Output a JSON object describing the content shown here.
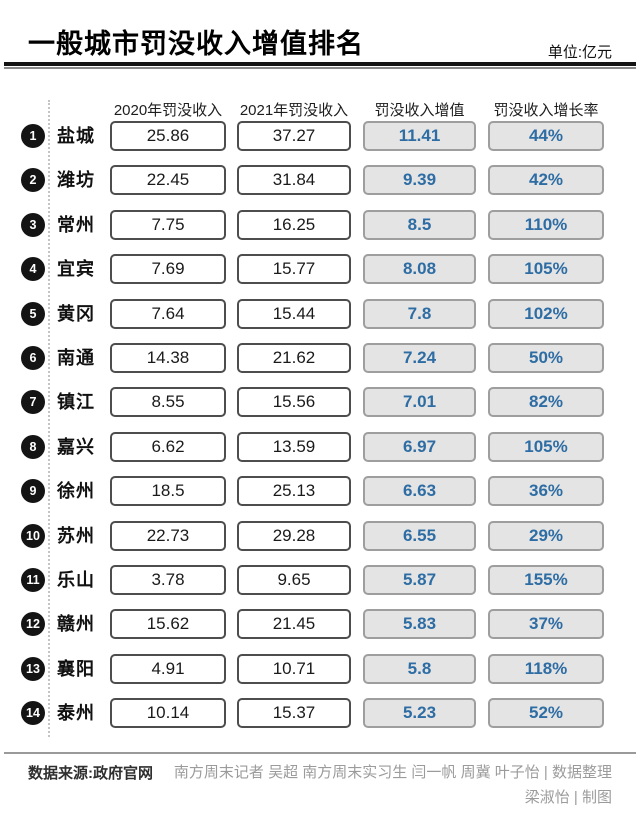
{
  "header": {
    "title": "一般城市罚没收入增值排名",
    "unit_label": "单位:亿元"
  },
  "chart_data": {
    "type": "table",
    "title": "一般城市罚没收入增值排名",
    "unit": "亿元",
    "columns": [
      "2020年罚没收入",
      "2021年罚没收入",
      "罚没收入增值",
      "罚没收入增长率"
    ],
    "rows": [
      {
        "rank": "1",
        "city": "盐城",
        "y2020": "25.86",
        "y2021": "37.27",
        "increase": "11.41",
        "growth": "44%"
      },
      {
        "rank": "2",
        "city": "潍坊",
        "y2020": "22.45",
        "y2021": "31.84",
        "increase": "9.39",
        "growth": "42%"
      },
      {
        "rank": "3",
        "city": "常州",
        "y2020": "7.75",
        "y2021": "16.25",
        "increase": "8.5",
        "growth": "110%"
      },
      {
        "rank": "4",
        "city": "宜宾",
        "y2020": "7.69",
        "y2021": "15.77",
        "increase": "8.08",
        "growth": "105%"
      },
      {
        "rank": "5",
        "city": "黄冈",
        "y2020": "7.64",
        "y2021": "15.44",
        "increase": "7.8",
        "growth": "102%"
      },
      {
        "rank": "6",
        "city": "南通",
        "y2020": "14.38",
        "y2021": "21.62",
        "increase": "7.24",
        "growth": "50%"
      },
      {
        "rank": "7",
        "city": "镇江",
        "y2020": "8.55",
        "y2021": "15.56",
        "increase": "7.01",
        "growth": "82%"
      },
      {
        "rank": "8",
        "city": "嘉兴",
        "y2020": "6.62",
        "y2021": "13.59",
        "increase": "6.97",
        "growth": "105%"
      },
      {
        "rank": "9",
        "city": "徐州",
        "y2020": "18.5",
        "y2021": "25.13",
        "increase": "6.63",
        "growth": "36%"
      },
      {
        "rank": "10",
        "city": "苏州",
        "y2020": "22.73",
        "y2021": "29.28",
        "increase": "6.55",
        "growth": "29%"
      },
      {
        "rank": "11",
        "city": "乐山",
        "y2020": "3.78",
        "y2021": "9.65",
        "increase": "5.87",
        "growth": "155%"
      },
      {
        "rank": "12",
        "city": "赣州",
        "y2020": "15.62",
        "y2021": "21.45",
        "increase": "5.83",
        "growth": "37%"
      },
      {
        "rank": "13",
        "city": "襄阳",
        "y2020": "4.91",
        "y2021": "10.71",
        "increase": "5.8",
        "growth": "118%"
      },
      {
        "rank": "14",
        "city": "泰州",
        "y2020": "10.14",
        "y2021": "15.37",
        "increase": "5.23",
        "growth": "52%"
      }
    ]
  },
  "footer": {
    "source": "数据来源:政府官网",
    "credits_line1": "南方周末记者 吴超 南方周末实习生 闫一帆 周冀 叶子怡 | 数据整理",
    "credits_line2": "梁淑怡 | 制图"
  },
  "colors": {
    "accent_blue": "#2e6da4",
    "gray_box_bg": "#e4e4e4",
    "gray_box_border": "#9e9e9e",
    "white_box_border": "#4d4d4d",
    "rank_circle": "#141414"
  }
}
